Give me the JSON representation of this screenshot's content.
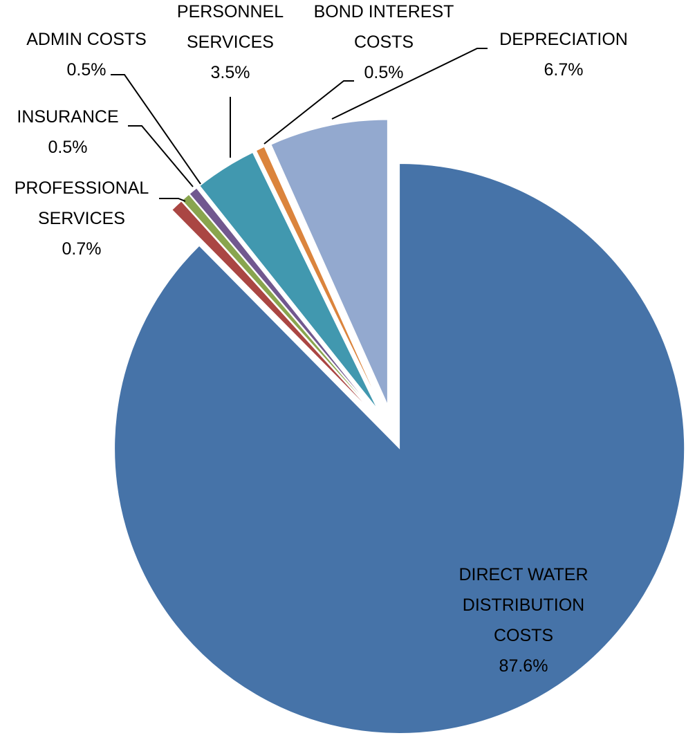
{
  "chart_data": {
    "type": "pie",
    "categories": [
      "DIRECT WATER DISTRIBUTION COSTS",
      "PROFESSIONAL SERVICES",
      "INSURANCE",
      "ADMIN COSTS",
      "PERSONNEL SERVICES",
      "BOND INTEREST COSTS",
      "DEPRECIATION"
    ],
    "values": [
      87.6,
      0.7,
      0.5,
      0.5,
      3.5,
      0.5,
      6.7
    ],
    "value_labels": [
      "87.6%",
      "0.7%",
      "0.5%",
      "0.5%",
      "3.5%",
      "0.5%",
      "6.7%"
    ],
    "colors": [
      "#4673a8",
      "#aa4643",
      "#89a54e",
      "#71588f",
      "#4198af",
      "#db843d",
      "#93a9cf"
    ]
  }
}
